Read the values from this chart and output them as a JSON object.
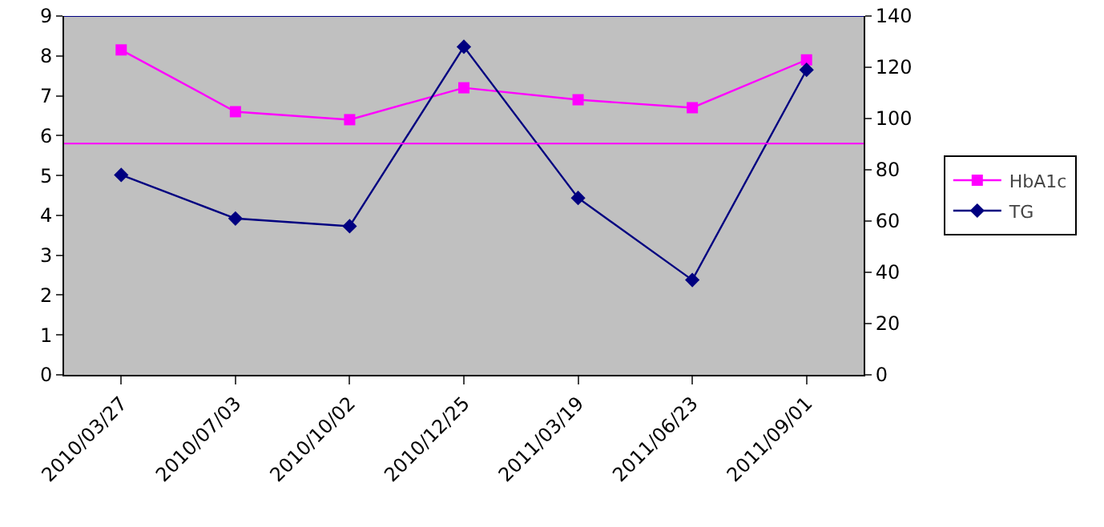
{
  "chart_data": {
    "type": "line",
    "categories": [
      "2010/03/27",
      "2010/07/03",
      "2010/10/02",
      "2010/12/25",
      "2011/03/19",
      "2011/06/23",
      "2011/09/01"
    ],
    "series": [
      {
        "name": "HbA1c",
        "color": "#ff00ff",
        "marker": "square",
        "values": [
          8.15,
          6.6,
          6.4,
          7.2,
          6.9,
          6.7,
          7.9
        ]
      },
      {
        "name": "TG",
        "color": "#000080",
        "marker": "diamond",
        "axis": "y2",
        "values": [
          78,
          61,
          58,
          128,
          69,
          37,
          119
        ]
      }
    ],
    "ylim": [
      0,
      9
    ],
    "yticks": [
      0,
      1,
      2,
      3,
      4,
      5,
      6,
      7,
      8,
      9
    ],
    "y2lim": [
      0,
      140
    ],
    "y2ticks": [
      0,
      20,
      40,
      60,
      80,
      100,
      120,
      140
    ],
    "ref_lines": [
      {
        "axis": "y",
        "value": 5.8,
        "color": "#ff00ff"
      },
      {
        "axis": "y2",
        "value": 140,
        "color": "#000080"
      }
    ],
    "legend": "right",
    "grid": false
  }
}
